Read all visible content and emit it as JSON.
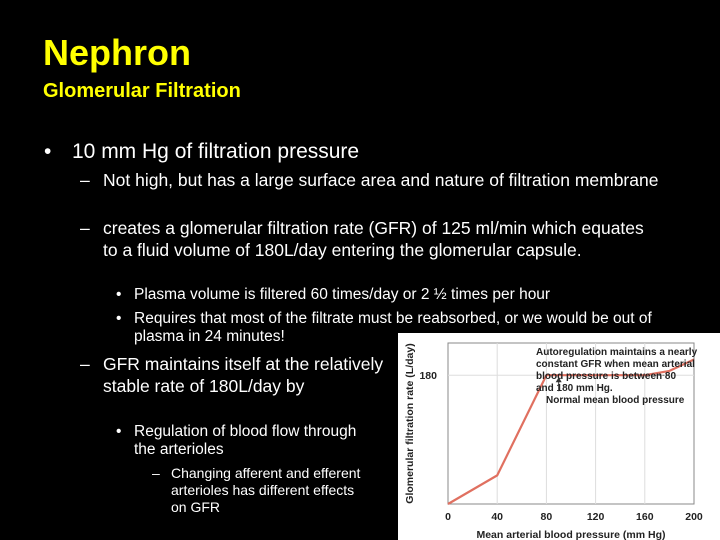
{
  "slide": {
    "title": "Nephron",
    "subtitle": "Glomerular Filtration",
    "bullet1": "10 mm Hg of filtration pressure",
    "sub1a": "Not high, but has a large surface area and nature of filtration membrane",
    "sub1b": "creates a glomerular filtration rate (GFR) of 125 ml/min which equates to a fluid volume of 180L/day entering the glomerular capsule.",
    "sub1b_i": "Plasma volume is filtered 60 times/day or 2 ½ times per hour",
    "sub1b_ii": "Requires that most of the filtrate must be reabsorbed, or we would be out of plasma in 24 minutes!",
    "sub2": "GFR maintains itself at the relatively stable rate of 180L/day by",
    "sub2_i": "Regulation of blood flow through the arterioles",
    "sub2_i_a": "Changing afferent and efferent arterioles has different effects on GFR"
  },
  "chart_data": {
    "type": "line",
    "title": "",
    "xlabel": "Mean arterial blood pressure (mm Hg)",
    "ylabel": "Glomerular filtration rate (L/day)",
    "xlim": [
      0,
      200
    ],
    "ylim": [
      0,
      225
    ],
    "x_ticks": [
      0,
      40,
      80,
      120,
      160,
      200
    ],
    "y_ticks": [
      180
    ],
    "x": [
      0,
      40,
      80,
      90,
      160,
      180,
      200
    ],
    "y": [
      0,
      40,
      180,
      180,
      180,
      186,
      202
    ],
    "line_color": "#e07060",
    "annotations": [
      {
        "text": "Autoregulation maintains a nearly constant GFR when mean arterial blood pressure is between 80 and 180 mm Hg.",
        "lines": [
          "Autoregulation maintains a nearly",
          "constant GFR when mean arterial",
          "blood pressure is between 80",
          "and 180 mm Hg."
        ]
      },
      {
        "text": "Normal mean blood pressure",
        "lines": [
          "Normal mean blood pressure"
        ],
        "x": 90,
        "y": 180
      }
    ]
  }
}
